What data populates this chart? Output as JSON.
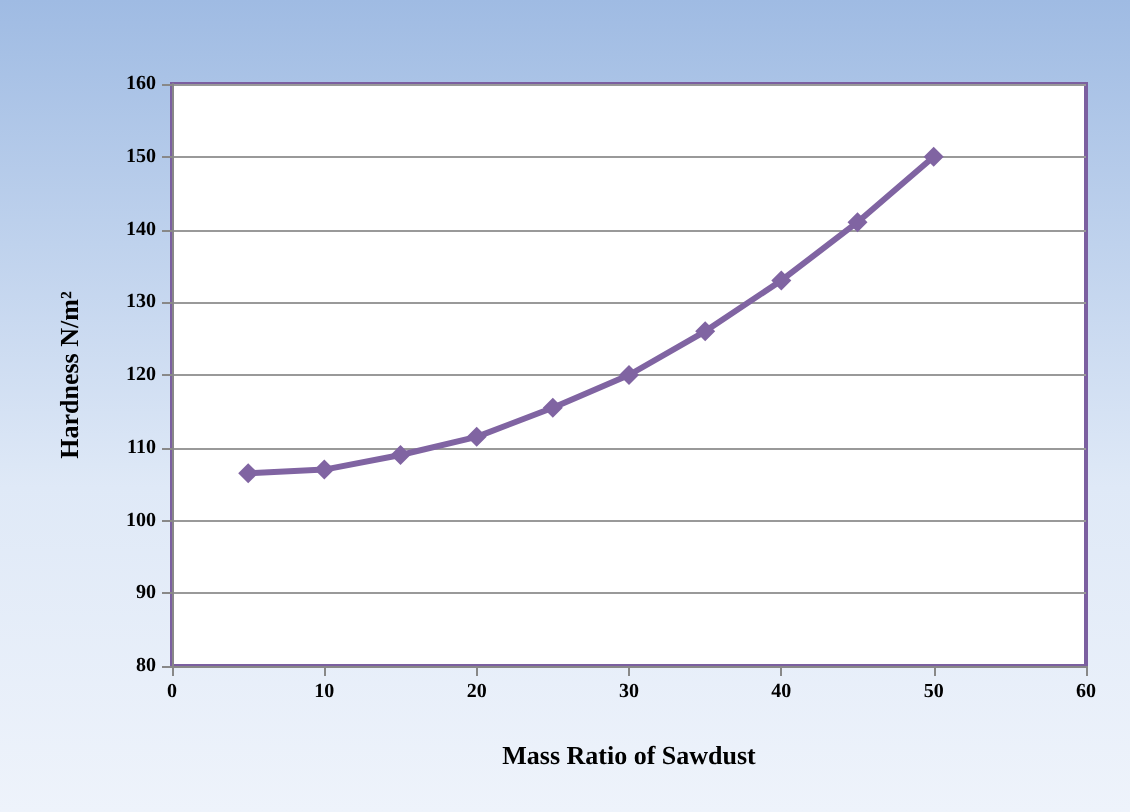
{
  "chart_data": {
    "type": "line",
    "xlabel": "Mass Ratio of Sawdust",
    "ylabel": "Hardness N/m²",
    "x": [
      5,
      10,
      15,
      20,
      25,
      30,
      35,
      40,
      45,
      50
    ],
    "series": [
      {
        "color": "#8064a2",
        "values": [
          106.5,
          107,
          109,
          111.5,
          115.5,
          120,
          126,
          133,
          141,
          150
        ]
      }
    ],
    "xlim": [
      0,
      60
    ],
    "xticks": [
      0,
      10,
      20,
      30,
      40,
      50,
      60
    ],
    "ylim": [
      80,
      160
    ],
    "yticks": [
      80,
      90,
      100,
      110,
      120,
      130,
      140,
      150,
      160
    ],
    "grid": "y",
    "marker": "diamond",
    "line_style": "solid"
  }
}
